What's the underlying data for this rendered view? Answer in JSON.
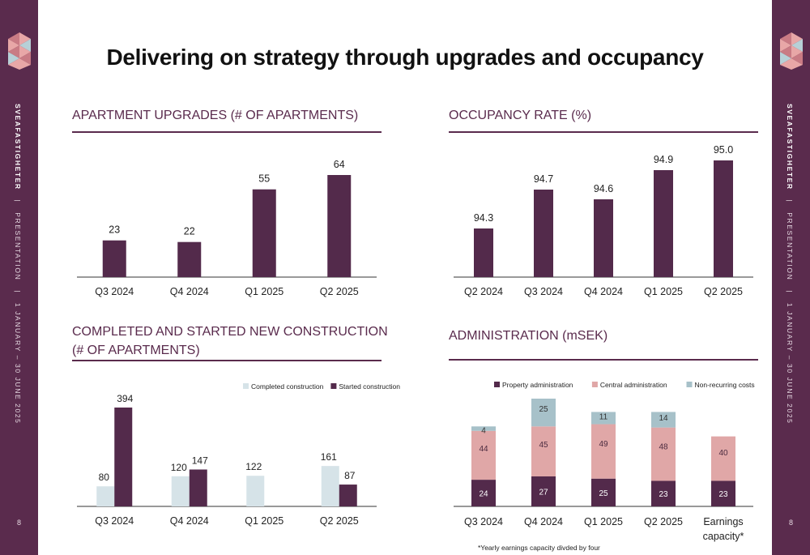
{
  "page_title": "Delivering on strategy through upgrades and occupancy",
  "sidebar": {
    "brand": "SVEAFASTIGHETER",
    "sep": "|",
    "section": "PRESENTATION",
    "period": "1 JANUARY – 30 JUNE 2025",
    "page_number": "8"
  },
  "colors": {
    "plum": "#532A4B",
    "light_blue": "#D6E3E8",
    "pink": "#E0A7A7",
    "grey_blue": "#A7C1C9"
  },
  "sections": {
    "upgrades_title": "APARTMENT UPGRADES (# OF APARTMENTS)",
    "occupancy_title": "OCCUPANCY RATE (%)",
    "construction_title_1": "COMPLETED AND STARTED NEW CONSTRUCTION",
    "construction_title_2": "(# OF APARTMENTS)",
    "admin_title": "ADMINISTRATION (mSEK)"
  },
  "footnote": "*Yearly earnings capacity divded by four",
  "chart_data": [
    {
      "id": "upgrades",
      "type": "bar",
      "title": "APARTMENT UPGRADES (# OF APARTMENTS)",
      "categories": [
        "Q3 2024",
        "Q4 2024",
        "Q1 2025",
        "Q2 2025"
      ],
      "values": [
        23,
        22,
        55,
        64
      ],
      "ylim": [
        0,
        64
      ],
      "grid": false
    },
    {
      "id": "occupancy",
      "type": "bar",
      "title": "OCCUPANCY RATE (%)",
      "categories": [
        "Q2 2024",
        "Q3 2024",
        "Q4 2024",
        "Q1 2025",
        "Q2 2025"
      ],
      "values": [
        "94.3",
        "94.7",
        "94.6",
        "94.9",
        "95.0"
      ],
      "ylim": [
        93.8,
        95.0
      ],
      "grid": false
    },
    {
      "id": "construction",
      "type": "bar",
      "title": "COMPLETED AND STARTED NEW CONSTRUCTION (# OF APARTMENTS)",
      "categories": [
        "Q3 2024",
        "Q4 2024",
        "Q1 2025",
        "Q2 2025"
      ],
      "series": [
        {
          "name": "Completed construction",
          "values": [
            80,
            120,
            122,
            161
          ]
        },
        {
          "name": "Started construction",
          "values": [
            394,
            147,
            null,
            87
          ]
        }
      ],
      "ylim": [
        0,
        394
      ],
      "legend": "top-right",
      "grid": false
    },
    {
      "id": "administration",
      "type": "bar",
      "stacked": true,
      "title": "ADMINISTRATION (mSEK)",
      "categories": [
        "Q3 2024",
        "Q4 2024",
        "Q1 2025",
        "Q2 2025",
        "Earnings capacity*"
      ],
      "series": [
        {
          "name": "Property administration",
          "values": [
            24,
            27,
            25,
            23,
            23
          ]
        },
        {
          "name": "Central administration",
          "values": [
            44,
            45,
            49,
            48,
            40
          ]
        },
        {
          "name": "Non-recurring costs",
          "values": [
            4,
            25,
            11,
            14,
            null
          ]
        }
      ],
      "ylim": [
        0,
        97
      ],
      "legend": "top",
      "grid": false
    }
  ]
}
